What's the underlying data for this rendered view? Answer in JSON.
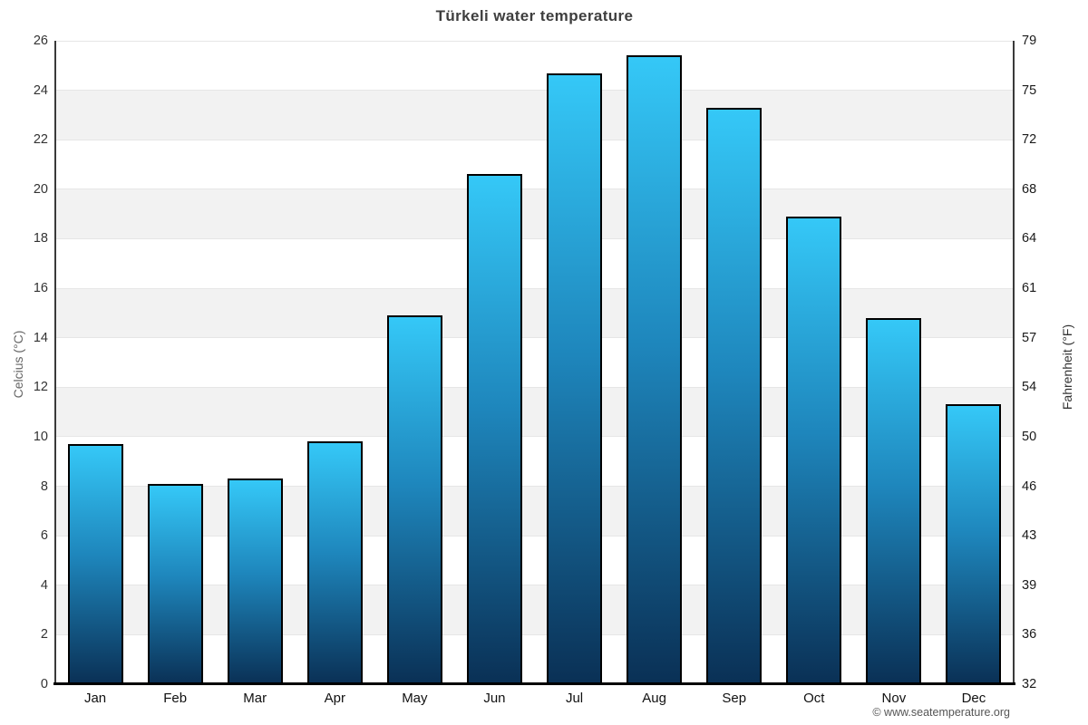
{
  "header": {
    "title": "Türkeli water temperature"
  },
  "footer": {
    "credit": "© www.seatemperature.org"
  },
  "chart_data": {
    "type": "bar",
    "title": "Türkeli water temperature",
    "categories": [
      "Jan",
      "Feb",
      "Mar",
      "Apr",
      "May",
      "Jun",
      "Jul",
      "Aug",
      "Sep",
      "Oct",
      "Nov",
      "Dec"
    ],
    "values": [
      9.7,
      8.1,
      8.3,
      9.8,
      14.9,
      20.6,
      24.7,
      25.4,
      23.3,
      18.9,
      14.8,
      11.3
    ],
    "series_unit": "°C",
    "ylabel_left": "Celcius (°C)",
    "ylabel_right": "Fahrenheit (°F)",
    "yticks_left": [
      26,
      24,
      22,
      20,
      18,
      16,
      14,
      12,
      10,
      8,
      6,
      4,
      2,
      0
    ],
    "yticks_right": [
      79,
      75,
      72,
      68,
      64,
      61,
      57,
      54,
      50,
      46,
      43,
      39,
      36,
      32
    ],
    "ylim": [
      0,
      26
    ],
    "grid": true,
    "legend": false,
    "band_fill": "striped",
    "colors": {
      "bar_gradient_top": "#35c8f7",
      "bar_gradient_mid": "#1e86bc",
      "bar_gradient_bottom": "#0a3055",
      "bar_border": "#000000",
      "band": "#f2f2f2",
      "band_alt": "#ffffff",
      "gridline": "#e6e6e6",
      "axis_line": "#3a3a3a",
      "baseline": "#000000",
      "title_text": "#3e3e3e"
    }
  }
}
